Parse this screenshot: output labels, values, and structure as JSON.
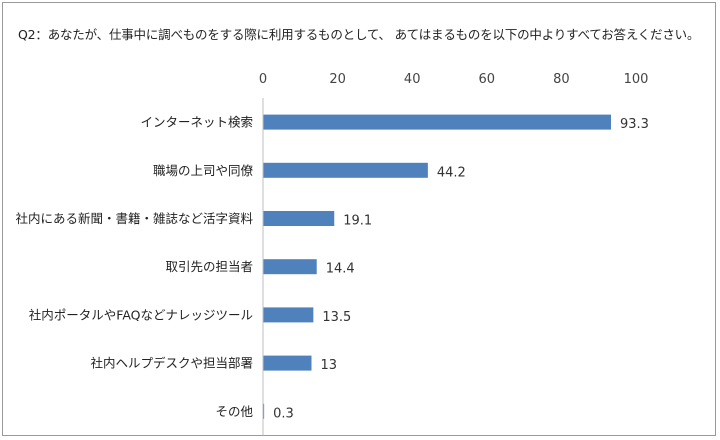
{
  "question": "Q2：あなたが、仕事中に調べものをする際に利用するものとして、 あてはまるものを以下の中よりすべてお答えください。",
  "chart_data": {
    "type": "bar",
    "orientation": "horizontal",
    "categories": [
      "インターネット検索",
      "職場の上司や同僚",
      "社内にある新聞・書籍・雑誌など活字資料",
      "取引先の担当者",
      "社内ポータルやFAQなどナレッジツール",
      "社内ヘルプデスクや担当部署",
      "その他"
    ],
    "values": [
      93.3,
      44.2,
      19.1,
      14.4,
      13.5,
      13,
      0.3
    ],
    "value_labels": [
      "93.3",
      "44.2",
      "19.1",
      "14.4",
      "13.5",
      "13",
      "0.3"
    ],
    "xlim": [
      0,
      100
    ],
    "ticks": [
      "0",
      "20",
      "40",
      "60",
      "80",
      "100"
    ],
    "tick_values": [
      0,
      20,
      40,
      60,
      80,
      100
    ],
    "axis_position": "top",
    "grid": false,
    "bar_color": "#4f81bd"
  }
}
